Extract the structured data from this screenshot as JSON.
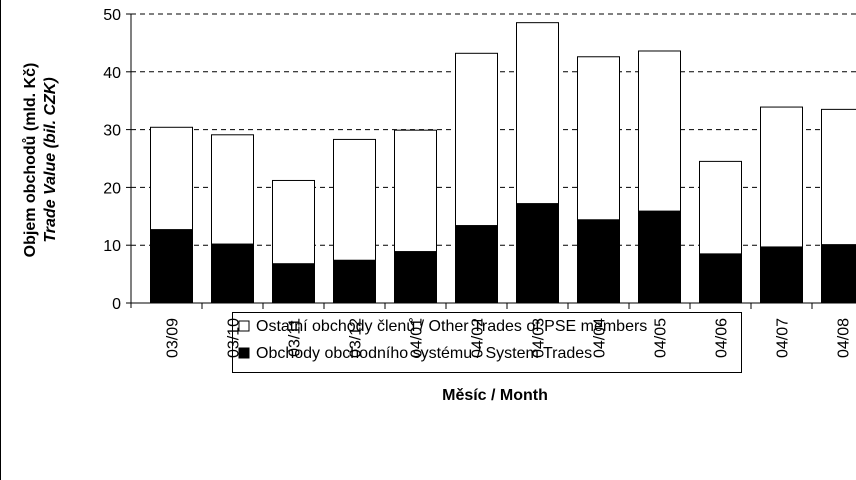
{
  "chart_data": {
    "type": "stacked_bar",
    "y_label": [
      "Objem obchodů (mld. Kč)",
      "Trade Value (bil. CZK)"
    ],
    "x_label": "Měsíc / Month",
    "categories": [
      "03/09",
      "03/10",
      "03/11",
      "03/12",
      "04/01",
      "04/02",
      "04/03",
      "04/04",
      "04/05",
      "04/06",
      "04/07",
      "04/08"
    ],
    "series": [
      {
        "name": "Obchody obchodního systému / System Trades",
        "color": "#000000",
        "values": [
          12.7,
          10.2,
          6.8,
          7.4,
          8.9,
          13.4,
          17.2,
          14.4,
          15.9,
          8.5,
          9.7,
          10.1
        ]
      },
      {
        "name": "Ostatní obchody členů / Other Trades of PSE members",
        "color": "#ffffff",
        "values": [
          17.7,
          18.9,
          14.4,
          20.9,
          21.0,
          29.8,
          31.3,
          28.2,
          27.7,
          16.0,
          24.2,
          23.4
        ]
      }
    ],
    "ylim": [
      0,
      50
    ],
    "yticks": [
      0,
      10,
      20,
      30,
      40,
      50
    ],
    "grid": true
  }
}
